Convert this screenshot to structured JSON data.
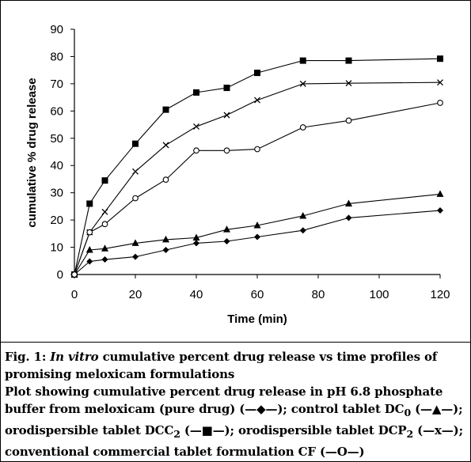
{
  "chart_data": {
    "type": "line",
    "xlabel": "Time  (min)",
    "ylabel": "cumulative % drug release",
    "xlim": [
      0,
      120
    ],
    "ylim": [
      0,
      90
    ],
    "x_ticks": [
      0,
      20,
      40,
      60,
      80,
      100,
      120
    ],
    "y_ticks": [
      0,
      10,
      20,
      30,
      40,
      50,
      60,
      70,
      80,
      90
    ],
    "grid": false,
    "series": [
      {
        "name": "meloxicam (pure drug)",
        "marker": "diamond-filled",
        "x": [
          0,
          5,
          10,
          20,
          30,
          40,
          50,
          60,
          75,
          90,
          120
        ],
        "values": [
          0,
          4.8,
          5.5,
          6.5,
          9,
          11.5,
          12.2,
          13.8,
          16.2,
          20.8,
          23.5
        ]
      },
      {
        "name": "control tablet DC0",
        "marker": "triangle-filled",
        "x": [
          0,
          5,
          10,
          20,
          30,
          40,
          50,
          60,
          75,
          90,
          120
        ],
        "values": [
          0,
          9,
          9.5,
          11.5,
          12.8,
          13.5,
          16.5,
          18,
          21.5,
          26,
          29.5
        ]
      },
      {
        "name": "orodispersible tablet DCC2",
        "marker": "square-filled",
        "x": [
          0,
          5,
          10,
          20,
          30,
          40,
          50,
          60,
          75,
          90,
          120
        ],
        "values": [
          0,
          26,
          34.5,
          48,
          60.5,
          66.8,
          68.5,
          74,
          78.5,
          78.5,
          79.2
        ]
      },
      {
        "name": "orodispersible tablet DCP2",
        "marker": "x",
        "x": [
          0,
          5,
          10,
          20,
          30,
          40,
          50,
          60,
          75,
          90,
          120
        ],
        "values": [
          0,
          15.5,
          23,
          37.8,
          47.5,
          54.3,
          58.5,
          64,
          70,
          70.2,
          70.5
        ]
      },
      {
        "name": "conventional commercial tablet formulation CF",
        "marker": "circle-open",
        "x": [
          0,
          5,
          10,
          20,
          30,
          40,
          50,
          60,
          75,
          90,
          120
        ],
        "values": [
          0,
          15.5,
          18.5,
          28,
          34.8,
          45.5,
          45.5,
          46,
          54,
          56.5,
          63
        ]
      }
    ]
  },
  "caption": {
    "fig_label": "Fig. 1:",
    "title_italic": "In vitro",
    "title_rest_1": "cumulative percent drug release vs time profiles of",
    "title_rest_2": "promising meloxicam formulations",
    "desc_1": "Plot showing cumulative percent drug release in pH 6.8 phosphate",
    "desc_2": "buffer from meloxicam (pure drug) (—◆—); control tablet DC",
    "desc_2_sub": "0",
    "desc_2_end": " (—▲—);",
    "desc_3": "orodispersible tablet DCC",
    "desc_3_sub": "2",
    "desc_3_mid": " (—■—); orodispersible tablet DCP",
    "desc_3_sub2": "2",
    "desc_3_end": " (—x—);",
    "desc_4": "conventional commercial tablet formulation CF (—O—)"
  }
}
